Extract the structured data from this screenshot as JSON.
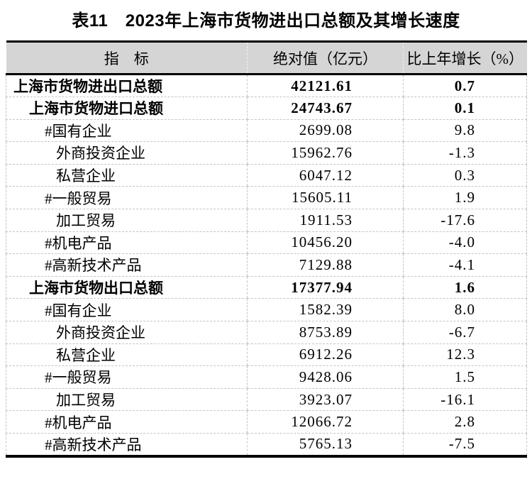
{
  "title": "表11　2023年上海市货物进出口总额及其增长速度",
  "table": {
    "columns": [
      "指　标",
      "绝对值（亿元）",
      "比上年增长（%）"
    ],
    "rows": [
      {
        "indicator": "上海市货物进出口总额",
        "value": "42121.61",
        "growth": "0.7",
        "bold": true,
        "indent": 0
      },
      {
        "indicator": "上海市货物进口总额",
        "value": "24743.67",
        "growth": "0.1",
        "bold": true,
        "indent": 1
      },
      {
        "indicator": "#国有企业",
        "value": "2699.08",
        "growth": "9.8",
        "bold": false,
        "indent": 2
      },
      {
        "indicator": "外商投资企业",
        "value": "15962.76",
        "growth": "-1.3",
        "bold": false,
        "indent": 3
      },
      {
        "indicator": "私营企业",
        "value": "6047.12",
        "growth": "0.3",
        "bold": false,
        "indent": 3
      },
      {
        "indicator": "#一般贸易",
        "value": "15605.11",
        "growth": "1.9",
        "bold": false,
        "indent": 2
      },
      {
        "indicator": "加工贸易",
        "value": "1911.53",
        "growth": "-17.6",
        "bold": false,
        "indent": 3
      },
      {
        "indicator": "#机电产品",
        "value": "10456.20",
        "growth": "-4.0",
        "bold": false,
        "indent": 2
      },
      {
        "indicator": "#高新技术产品",
        "value": "7129.88",
        "growth": "-4.1",
        "bold": false,
        "indent": 2
      },
      {
        "indicator": "上海市货物出口总额",
        "value": "17377.94",
        "growth": "1.6",
        "bold": true,
        "indent": 1
      },
      {
        "indicator": "#国有企业",
        "value": "1582.39",
        "growth": "8.0",
        "bold": false,
        "indent": 2
      },
      {
        "indicator": "外商投资企业",
        "value": "8753.89",
        "growth": "-6.7",
        "bold": false,
        "indent": 3
      },
      {
        "indicator": "私营企业",
        "value": "6912.26",
        "growth": "12.3",
        "bold": false,
        "indent": 3
      },
      {
        "indicator": "#一般贸易",
        "value": "9428.06",
        "growth": "1.5",
        "bold": false,
        "indent": 2
      },
      {
        "indicator": "加工贸易",
        "value": "3923.07",
        "growth": "-16.1",
        "bold": false,
        "indent": 3
      },
      {
        "indicator": "#机电产品",
        "value": "12066.72",
        "growth": "2.8",
        "bold": false,
        "indent": 2
      },
      {
        "indicator": "#高新技术产品",
        "value": "5765.13",
        "growth": "-7.5",
        "bold": false,
        "indent": 2
      }
    ]
  },
  "colors": {
    "header_bg": "#d5d5d5",
    "heavy_border": "#000000",
    "grid_line": "#c4c4c4"
  },
  "chart_data": {
    "type": "table",
    "title": "表11　2023年上海市货物进出口总额及其增长速度",
    "columns": [
      "指　标",
      "绝对值（亿元）",
      "比上年增长（%）"
    ],
    "rows": [
      [
        "上海市货物进出口总额",
        42121.61,
        0.7
      ],
      [
        "上海市货物进口总额",
        24743.67,
        0.1
      ],
      [
        "#国有企业",
        2699.08,
        9.8
      ],
      [
        "外商投资企业",
        15962.76,
        -1.3
      ],
      [
        "私营企业",
        6047.12,
        0.3
      ],
      [
        "#一般贸易",
        15605.11,
        1.9
      ],
      [
        "加工贸易",
        1911.53,
        -17.6
      ],
      [
        "#机电产品",
        10456.2,
        -4.0
      ],
      [
        "#高新技术产品",
        7129.88,
        -4.1
      ],
      [
        "上海市货物出口总额",
        17377.94,
        1.6
      ],
      [
        "#国有企业",
        1582.39,
        8.0
      ],
      [
        "外商投资企业",
        8753.89,
        -6.7
      ],
      [
        "私营企业",
        6912.26,
        12.3
      ],
      [
        "#一般贸易",
        9428.06,
        1.5
      ],
      [
        "加工贸易",
        3923.07,
        -16.1
      ],
      [
        "#机电产品",
        12066.72,
        2.8
      ],
      [
        "#高新技术产品",
        5765.13,
        -7.5
      ]
    ]
  }
}
